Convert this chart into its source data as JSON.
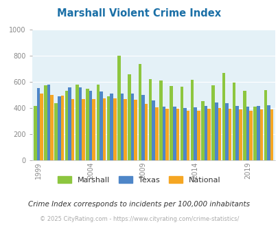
{
  "title": "Marshall Violent Crime Index",
  "years": [
    1999,
    2000,
    2001,
    2002,
    2003,
    2004,
    2005,
    2006,
    2007,
    2008,
    2009,
    2010,
    2011,
    2012,
    2013,
    2014,
    2015,
    2016,
    2017,
    2018,
    2019,
    2020,
    2021
  ],
  "marshall": [
    415,
    570,
    435,
    530,
    580,
    545,
    580,
    490,
    800,
    655,
    735,
    620,
    610,
    565,
    560,
    615,
    450,
    575,
    665,
    595,
    530,
    410,
    535
  ],
  "texas": [
    550,
    580,
    490,
    555,
    555,
    530,
    525,
    510,
    510,
    510,
    500,
    455,
    410,
    410,
    400,
    405,
    415,
    440,
    435,
    415,
    410,
    415,
    420
  ],
  "national": [
    510,
    500,
    495,
    465,
    465,
    465,
    470,
    475,
    465,
    460,
    430,
    405,
    395,
    395,
    380,
    380,
    395,
    400,
    395,
    390,
    380,
    390,
    390
  ],
  "marshall_color": "#8dc63f",
  "texas_color": "#4e86c8",
  "national_color": "#f5a623",
  "bg_color": "#e4f1f7",
  "ylim": [
    0,
    1000
  ],
  "yticks": [
    0,
    200,
    400,
    600,
    800,
    1000
  ],
  "xtick_years": [
    1999,
    2004,
    2009,
    2014,
    2019
  ],
  "subtitle": "Crime Index corresponds to incidents per 100,000 inhabitants",
  "footer": "© 2025 CityRating.com - https://www.cityrating.com/crime-statistics/",
  "legend_labels": [
    "Marshall",
    "Texas",
    "National"
  ]
}
